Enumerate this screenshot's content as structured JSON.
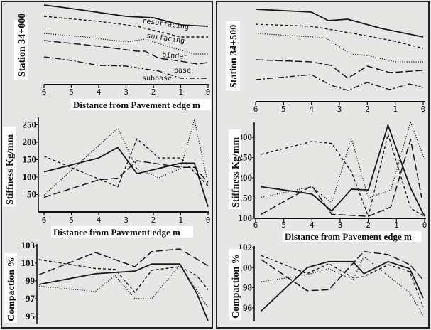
{
  "chart_data": [
    {
      "id": "lt",
      "type": "line",
      "ylabel": "Station 34+000",
      "xlabel": "Distance from Pavement edge m",
      "xlim": [
        6,
        0
      ],
      "xticks": [
        "6",
        "5",
        "4",
        "3",
        "2",
        "1",
        "0"
      ],
      "ylim": [
        0,
        120
      ],
      "yticks": [],
      "annotations": [
        "resurfacing",
        "surfacing",
        "binder",
        "base",
        "subbase"
      ],
      "series": [
        {
          "name": "resurfacing",
          "style": "solid",
          "x": [
            6,
            5,
            3,
            2,
            1,
            0
          ],
          "y": [
            113,
            108,
            97,
            95,
            85,
            83
          ]
        },
        {
          "name": "surfacing",
          "style": "dash",
          "x": [
            6,
            4,
            2.6,
            1,
            0
          ],
          "y": [
            97,
            90,
            83,
            68,
            68
          ]
        },
        {
          "name": "binder",
          "style": "dot",
          "x": [
            6,
            4.5,
            3,
            2.3,
            1.5,
            0.5,
            0
          ],
          "y": [
            73,
            68,
            61,
            65,
            55,
            44,
            44
          ]
        },
        {
          "name": "base",
          "style": "longdash",
          "x": [
            6,
            4,
            2.6,
            2.3,
            1.8,
            1,
            0.4,
            0
          ],
          "y": [
            63,
            55,
            48,
            48,
            38,
            34,
            30,
            32
          ]
        },
        {
          "name": "subbase",
          "style": "dashdot",
          "x": [
            6,
            5,
            4,
            3,
            1.8,
            1,
            0
          ],
          "y": [
            40,
            35,
            28,
            27,
            20,
            10,
            10
          ]
        }
      ]
    },
    {
      "id": "rt",
      "type": "line",
      "ylabel": "Station 34+500",
      "xlabel": "",
      "xlim": [
        6,
        0
      ],
      "xticks": [
        "6",
        "5",
        "4",
        "3",
        "2",
        "1",
        "0"
      ],
      "ylim": [
        0,
        150
      ],
      "yticks": [],
      "series": [
        {
          "name": "resurfacing",
          "style": "solid",
          "x": [
            6,
            4,
            3.4,
            2.7,
            1.5,
            0
          ],
          "y": [
            137,
            133,
            121,
            123,
            110,
            98
          ]
        },
        {
          "name": "surfacing",
          "style": "dash",
          "x": [
            6,
            4,
            2.5,
            1,
            0
          ],
          "y": [
            116,
            113,
            103,
            92,
            82
          ]
        },
        {
          "name": "binder",
          "style": "dot",
          "x": [
            6,
            3.5,
            2.6,
            2,
            1,
            0
          ],
          "y": [
            103,
            97,
            74,
            72,
            63,
            63
          ]
        },
        {
          "name": "base",
          "style": "longdash",
          "x": [
            6,
            4,
            3.3,
            2.7,
            2,
            1.2,
            0
          ],
          "y": [
            66,
            63,
            58,
            40,
            57,
            48,
            51
          ]
        },
        {
          "name": "subbase",
          "style": "dashdot",
          "x": [
            6,
            4,
            3.3,
            2.7,
            2,
            1.2,
            0.5,
            0
          ],
          "y": [
            38,
            45,
            30,
            23,
            34,
            24,
            32,
            27
          ]
        }
      ]
    },
    {
      "id": "ls",
      "type": "line",
      "ylabel": "Stiffness Kg/mm",
      "xlabel": "Distance from Pavement edge m",
      "xlim": [
        6,
        0
      ],
      "xticks": [
        "6",
        "5",
        "4",
        "3",
        "2",
        "1",
        "0"
      ],
      "ylim": [
        0,
        270
      ],
      "yticks": [
        "50",
        "100",
        "150",
        "200",
        "250"
      ],
      "series": [
        {
          "name": "solid",
          "style": "solid",
          "x": [
            6,
            4,
            3.3,
            2.6,
            1,
            0.5,
            0
          ],
          "y": [
            115,
            155,
            185,
            110,
            140,
            140,
            15
          ]
        },
        {
          "name": "dashed",
          "style": "dash",
          "x": [
            6,
            3.3,
            2.6,
            1.8,
            1,
            0
          ],
          "y": [
            160,
            72,
            210,
            155,
            155,
            75
          ]
        },
        {
          "name": "dotted",
          "style": "dot",
          "x": [
            6,
            3.3,
            2.6,
            1.8,
            1,
            0.5,
            0
          ],
          "y": [
            48,
            240,
            125,
            98,
            125,
            265,
            80
          ]
        },
        {
          "name": "long-dashed",
          "style": "longdash",
          "x": [
            6,
            4,
            3.3,
            2.6,
            1,
            0.5,
            0
          ],
          "y": [
            42,
            92,
            97,
            147,
            128,
            128,
            85
          ]
        }
      ]
    },
    {
      "id": "rs",
      "type": "line",
      "ylabel": "Stiffness Kg/mm",
      "xlabel": "Distance from Pavement edge m",
      "xlim": [
        6,
        0
      ],
      "xticks": [
        "6",
        "5",
        "4",
        "3",
        "2",
        "1",
        "0"
      ],
      "ylim": [
        100,
        337
      ],
      "yticks": [
        "100",
        "150",
        "200",
        "250",
        "300"
      ],
      "series": [
        {
          "name": "solid",
          "style": "solid",
          "x": [
            5.8,
            4,
            3.3,
            2.6,
            2,
            1.3,
            0.5,
            0
          ],
          "y": [
            178,
            160,
            118,
            172,
            170,
            330,
            175,
            105
          ]
        },
        {
          "name": "dashed",
          "style": "dash",
          "x": [
            5.8,
            4,
            3.3,
            2.6,
            2,
            1.3,
            0.5,
            0
          ],
          "y": [
            258,
            290,
            285,
            215,
            105,
            308,
            125,
            105
          ]
        },
        {
          "name": "dotted",
          "style": "dot",
          "x": [
            5.8,
            4,
            3.3,
            2.6,
            2,
            1.2,
            0.5,
            0
          ],
          "y": [
            152,
            178,
            138,
            298,
            150,
            170,
            338,
            245
          ]
        },
        {
          "name": "long-dashed",
          "style": "longdash",
          "x": [
            5.8,
            4,
            3.3,
            2,
            1.2,
            0.5,
            0.1
          ],
          "y": [
            110,
            180,
            110,
            105,
            128,
            295,
            150
          ]
        }
      ]
    },
    {
      "id": "lc",
      "type": "line",
      "ylabel": "Compaction %",
      "xlabel": "",
      "xlim": [
        6,
        0
      ],
      "xticks": [],
      "ylim": [
        94.5,
        103
      ],
      "yticks": [
        "95",
        "97",
        "99",
        "101",
        "103"
      ],
      "series": [
        {
          "name": "long-dashed",
          "style": "longdash",
          "x": [
            6,
            4,
            2.6,
            2,
            1,
            0
          ],
          "y": [
            99.7,
            102.2,
            100.6,
            102.3,
            102.6,
            100.7
          ]
        },
        {
          "name": "dashed",
          "style": "dash",
          "x": [
            6,
            4,
            3.3,
            2.6,
            2,
            1,
            0.4,
            0
          ],
          "y": [
            101.4,
            100.4,
            100.3,
            97.7,
            100.2,
            100.6,
            99.6,
            98
          ]
        },
        {
          "name": "solid",
          "style": "solid",
          "x": [
            6,
            4,
            2.6,
            2,
            1,
            0.4,
            0
          ],
          "y": [
            98.6,
            99.8,
            100.1,
            100.9,
            100.9,
            97.6,
            94.5
          ]
        },
        {
          "name": "dotted",
          "style": "dot",
          "x": [
            6,
            4,
            3.3,
            2.6,
            2,
            1,
            0
          ],
          "y": [
            98.4,
            97.8,
            99.6,
            97,
            97,
            100.8,
            96
          ]
        }
      ]
    },
    {
      "id": "rc",
      "type": "line",
      "ylabel": "Compaction %",
      "xlabel": "",
      "xlim": [
        6,
        0
      ],
      "xticks": [],
      "ylim": [
        95,
        102
      ],
      "yticks": [
        "96",
        "98",
        "100",
        "102"
      ],
      "series": [
        {
          "name": "solid",
          "style": "solid",
          "x": [
            6,
            4.3,
            3.5,
            2.6,
            2.2,
            1.3,
            0.5,
            0
          ],
          "y": [
            95.7,
            100,
            100.6,
            100.6,
            99.4,
            100.6,
            99.9,
            97
          ]
        },
        {
          "name": "long-dashed",
          "style": "longdash",
          "x": [
            6,
            4.3,
            3.5,
            2.2,
            1.3,
            0.5,
            0
          ],
          "y": [
            100.8,
            97.7,
            97.8,
            101.6,
            101.3,
            100.3,
            98.8
          ]
        },
        {
          "name": "dashed",
          "style": "dash",
          "x": [
            6,
            4.3,
            3.5,
            2.6,
            2.2,
            1.3,
            0.5,
            0
          ],
          "y": [
            101.2,
            99.4,
            100.4,
            99,
            99.1,
            100.3,
            99.6,
            96.1
          ]
        },
        {
          "name": "dotted",
          "style": "dot",
          "x": [
            6,
            4.3,
            3.5,
            2.6,
            2.2,
            1.3,
            0.5,
            0
          ],
          "y": [
            98.6,
            99.3,
            99.9,
            98.8,
            101.1,
            99.2,
            97.5,
            95.2
          ]
        }
      ]
    }
  ]
}
